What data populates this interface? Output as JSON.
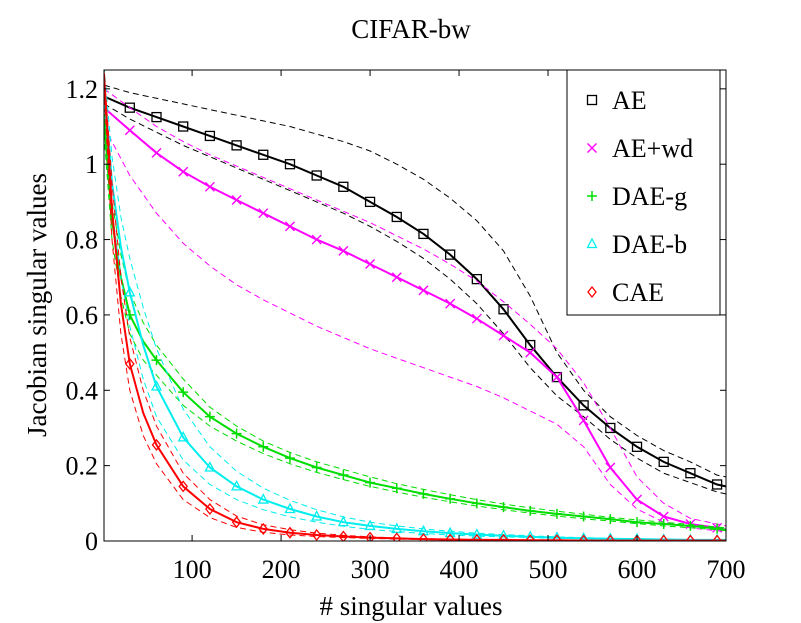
{
  "chart_data": {
    "type": "line",
    "title": "CIFAR-bw",
    "xlabel": "# singular values",
    "ylabel": "Jacobian singular values",
    "xlim": [
      1,
      700
    ],
    "ylim": [
      0,
      1.25
    ],
    "xticks": [
      100,
      200,
      300,
      400,
      500,
      600,
      700
    ],
    "yticks": [
      0,
      0.2,
      0.4,
      0.6,
      0.8,
      1,
      1.2
    ],
    "xtick_labels": [
      "100",
      "200",
      "300",
      "400",
      "500",
      "600",
      "700"
    ],
    "ytick_labels": [
      "0",
      "0.2",
      "0.4",
      "0.6",
      "0.8",
      "1",
      "1.2"
    ],
    "grid": false,
    "legend_position": "top-right",
    "series": [
      {
        "name": "AE",
        "color": "#000000",
        "marker": "square",
        "x": [
          1,
          30,
          60,
          90,
          120,
          150,
          180,
          210,
          240,
          270,
          300,
          330,
          360,
          390,
          420,
          450,
          480,
          510,
          540,
          570,
          600,
          630,
          660,
          690,
          700
        ],
        "y": [
          1.18,
          1.15,
          1.125,
          1.1,
          1.075,
          1.05,
          1.025,
          1.0,
          0.97,
          0.94,
          0.9,
          0.86,
          0.815,
          0.76,
          0.695,
          0.615,
          0.52,
          0.435,
          0.36,
          0.3,
          0.25,
          0.21,
          0.18,
          0.15,
          0.145
        ],
        "upper": [
          1.21,
          1.19,
          1.175,
          1.16,
          1.145,
          1.13,
          1.115,
          1.1,
          1.08,
          1.06,
          1.035,
          1.0,
          0.96,
          0.91,
          0.85,
          0.77,
          0.65,
          0.5,
          0.4,
          0.33,
          0.28,
          0.24,
          0.21,
          0.175,
          0.17
        ],
        "lower": [
          1.16,
          1.12,
          1.085,
          1.05,
          1.02,
          0.99,
          0.96,
          0.93,
          0.9,
          0.87,
          0.835,
          0.795,
          0.75,
          0.695,
          0.63,
          0.55,
          0.46,
          0.385,
          0.33,
          0.27,
          0.22,
          0.18,
          0.155,
          0.13,
          0.125
        ]
      },
      {
        "name": "AE+wd",
        "color": "#ff00ff",
        "marker": "x",
        "x": [
          1,
          30,
          60,
          90,
          120,
          150,
          180,
          210,
          240,
          270,
          300,
          330,
          360,
          390,
          420,
          450,
          480,
          510,
          540,
          570,
          600,
          630,
          660,
          690,
          700
        ],
        "y": [
          1.15,
          1.09,
          1.03,
          0.98,
          0.94,
          0.905,
          0.87,
          0.835,
          0.8,
          0.77,
          0.735,
          0.7,
          0.665,
          0.63,
          0.59,
          0.545,
          0.5,
          0.435,
          0.32,
          0.195,
          0.11,
          0.065,
          0.045,
          0.035,
          0.03
        ],
        "upper": [
          1.2,
          1.15,
          1.1,
          1.06,
          1.025,
          0.995,
          0.965,
          0.935,
          0.905,
          0.875,
          0.845,
          0.81,
          0.775,
          0.735,
          0.69,
          0.635,
          0.575,
          0.51,
          0.42,
          0.3,
          0.17,
          0.1,
          0.06,
          0.045,
          0.04
        ],
        "lower": [
          1.1,
          0.97,
          0.87,
          0.79,
          0.73,
          0.68,
          0.64,
          0.605,
          0.57,
          0.54,
          0.51,
          0.485,
          0.46,
          0.435,
          0.41,
          0.38,
          0.345,
          0.31,
          0.25,
          0.15,
          0.085,
          0.05,
          0.035,
          0.027,
          0.025
        ]
      },
      {
        "name": "DAE-g",
        "color": "#00dd00",
        "marker": "plus",
        "x": [
          1,
          10,
          20,
          30,
          45,
          60,
          90,
          120,
          150,
          180,
          210,
          240,
          270,
          300,
          330,
          360,
          390,
          420,
          450,
          480,
          510,
          540,
          570,
          600,
          630,
          660,
          690,
          700
        ],
        "y": [
          1.12,
          0.85,
          0.7,
          0.6,
          0.53,
          0.48,
          0.395,
          0.33,
          0.285,
          0.25,
          0.22,
          0.195,
          0.175,
          0.155,
          0.14,
          0.125,
          0.112,
          0.1,
          0.09,
          0.08,
          0.072,
          0.065,
          0.058,
          0.05,
          0.045,
          0.04,
          0.033,
          0.03
        ],
        "upper": [
          1.16,
          0.9,
          0.76,
          0.66,
          0.58,
          0.52,
          0.43,
          0.355,
          0.305,
          0.265,
          0.235,
          0.21,
          0.19,
          0.17,
          0.152,
          0.137,
          0.123,
          0.11,
          0.098,
          0.088,
          0.079,
          0.071,
          0.063,
          0.056,
          0.05,
          0.044,
          0.037,
          0.035
        ],
        "lower": [
          1.08,
          0.8,
          0.65,
          0.55,
          0.48,
          0.44,
          0.36,
          0.305,
          0.265,
          0.232,
          0.205,
          0.182,
          0.163,
          0.145,
          0.13,
          0.116,
          0.104,
          0.093,
          0.083,
          0.074,
          0.066,
          0.059,
          0.053,
          0.046,
          0.04,
          0.035,
          0.03,
          0.027
        ]
      },
      {
        "name": "DAE-b",
        "color": "#00eeee",
        "marker": "triangle",
        "x": [
          1,
          10,
          20,
          30,
          45,
          60,
          90,
          120,
          150,
          180,
          210,
          240,
          270,
          300,
          330,
          360,
          390,
          420,
          450,
          480,
          510,
          540,
          570,
          600,
          630,
          660,
          690,
          700
        ],
        "y": [
          1.22,
          0.95,
          0.78,
          0.66,
          0.52,
          0.41,
          0.275,
          0.195,
          0.145,
          0.11,
          0.085,
          0.065,
          0.05,
          0.04,
          0.032,
          0.026,
          0.021,
          0.017,
          0.014,
          0.011,
          0.009,
          0.007,
          0.006,
          0.005,
          0.004,
          0.003,
          0.003,
          0.003
        ],
        "upper": [
          1.26,
          1.02,
          0.86,
          0.75,
          0.62,
          0.51,
          0.35,
          0.25,
          0.185,
          0.14,
          0.108,
          0.083,
          0.064,
          0.05,
          0.04,
          0.032,
          0.026,
          0.021,
          0.017,
          0.014,
          0.011,
          0.009,
          0.007,
          0.006,
          0.005,
          0.004,
          0.004,
          0.004
        ],
        "lower": [
          1.18,
          0.88,
          0.7,
          0.57,
          0.43,
          0.33,
          0.215,
          0.15,
          0.11,
          0.083,
          0.064,
          0.05,
          0.039,
          0.031,
          0.025,
          0.02,
          0.016,
          0.013,
          0.011,
          0.009,
          0.007,
          0.006,
          0.005,
          0.004,
          0.003,
          0.003,
          0.002,
          0.002
        ]
      },
      {
        "name": "CAE",
        "color": "#ff0000",
        "marker": "diamond",
        "x": [
          1,
          10,
          20,
          30,
          45,
          60,
          90,
          120,
          150,
          180,
          210,
          240,
          270,
          300,
          330,
          360,
          390,
          420,
          450,
          480,
          510,
          540,
          570,
          600,
          630,
          660,
          690,
          700
        ],
        "y": [
          1.24,
          0.88,
          0.63,
          0.47,
          0.34,
          0.255,
          0.145,
          0.085,
          0.05,
          0.032,
          0.022,
          0.016,
          0.012,
          0.009,
          0.007,
          0.005,
          0.004,
          0.003,
          0.003,
          0.002,
          0.002,
          0.001,
          0.001,
          0.001,
          0.001,
          0.001,
          0.001,
          0.001
        ],
        "upper": [
          1.25,
          0.95,
          0.7,
          0.54,
          0.4,
          0.305,
          0.18,
          0.11,
          0.066,
          0.043,
          0.03,
          0.021,
          0.015,
          0.011,
          0.008,
          0.006,
          0.005,
          0.004,
          0.003,
          0.003,
          0.002,
          0.002,
          0.002,
          0.001,
          0.001,
          0.001,
          0.001,
          0.001
        ],
        "lower": [
          1.2,
          0.8,
          0.55,
          0.4,
          0.28,
          0.205,
          0.11,
          0.062,
          0.036,
          0.023,
          0.016,
          0.012,
          0.009,
          0.007,
          0.005,
          0.004,
          0.003,
          0.002,
          0.002,
          0.001,
          0.001,
          0.001,
          0.001,
          0.001,
          0.001,
          0.001,
          0.001,
          0.001
        ]
      }
    ],
    "marker_every_x": [
      30,
      60,
      90,
      120,
      150,
      180,
      210,
      240,
      270,
      300,
      330,
      360,
      390,
      420,
      450,
      480,
      510,
      540,
      570,
      600,
      630,
      660,
      690
    ]
  }
}
